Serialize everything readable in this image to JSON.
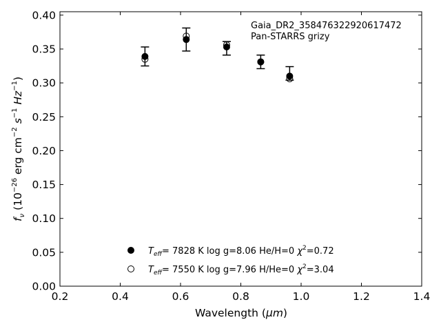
{
  "chart_data": {
    "type": "scatter",
    "annotation": [
      "Gaia_DR2_358476322920617472",
      "Pan-STARRS grizy"
    ],
    "xlabel": {
      "main": "Wavelength (",
      "unit": "μm",
      "close": ")"
    },
    "ylabel": {
      "prefix": "f",
      "sub": "ν",
      "open": " (10",
      "exp": "−26",
      "units": " erg cm",
      "exp2": "−2",
      "s": " s",
      "exp3": "−1",
      "hz": " Hz",
      "exp4": "−1",
      "close": ")"
    },
    "xlim": [
      0.2,
      1.4
    ],
    "ylim": [
      0.0,
      0.405
    ],
    "xticks": [
      "0.2",
      "0.4",
      "0.6",
      "0.8",
      "1.0",
      "1.2",
      "1.4"
    ],
    "yticks": [
      "0.00",
      "0.05",
      "0.10",
      "0.15",
      "0.20",
      "0.25",
      "0.30",
      "0.35",
      "0.40"
    ],
    "series": [
      {
        "marker": "filled-circle",
        "legend": {
          "teff_label": "T",
          "teff_sub": "eff",
          "teff": "=  7828 K",
          "logg": "  log g=8.06",
          "comp": "  He/H=0",
          "chi": "  χ",
          "chi_sup": "2",
          "chi_val": "=0.72"
        },
        "x": [
          0.482,
          0.619,
          0.753,
          0.866,
          0.962
        ],
        "y": [
          0.339,
          0.364,
          0.353,
          0.331,
          0.31
        ]
      },
      {
        "marker": "open-circle",
        "legend": {
          "teff_label": "T",
          "teff_sub": "eff",
          "teff": "=  7550 K",
          "logg": "  log g=7.96",
          "comp": "  H/He=0",
          "chi": "  χ",
          "chi_sup": "2",
          "chi_val": "=3.04"
        },
        "x": [
          0.482,
          0.619,
          0.753,
          0.866,
          0.962
        ],
        "y": [
          0.335,
          0.369,
          0.356,
          0.331,
          0.306
        ]
      }
    ],
    "errorbars": {
      "x": [
        0.482,
        0.619,
        0.753,
        0.866,
        0.962
      ],
      "y": [
        0.339,
        0.364,
        0.351,
        0.331,
        0.314
      ],
      "err": [
        0.014,
        0.017,
        0.01,
        0.01,
        0.01
      ]
    },
    "grid": false,
    "legend_position": "bottom-center"
  }
}
